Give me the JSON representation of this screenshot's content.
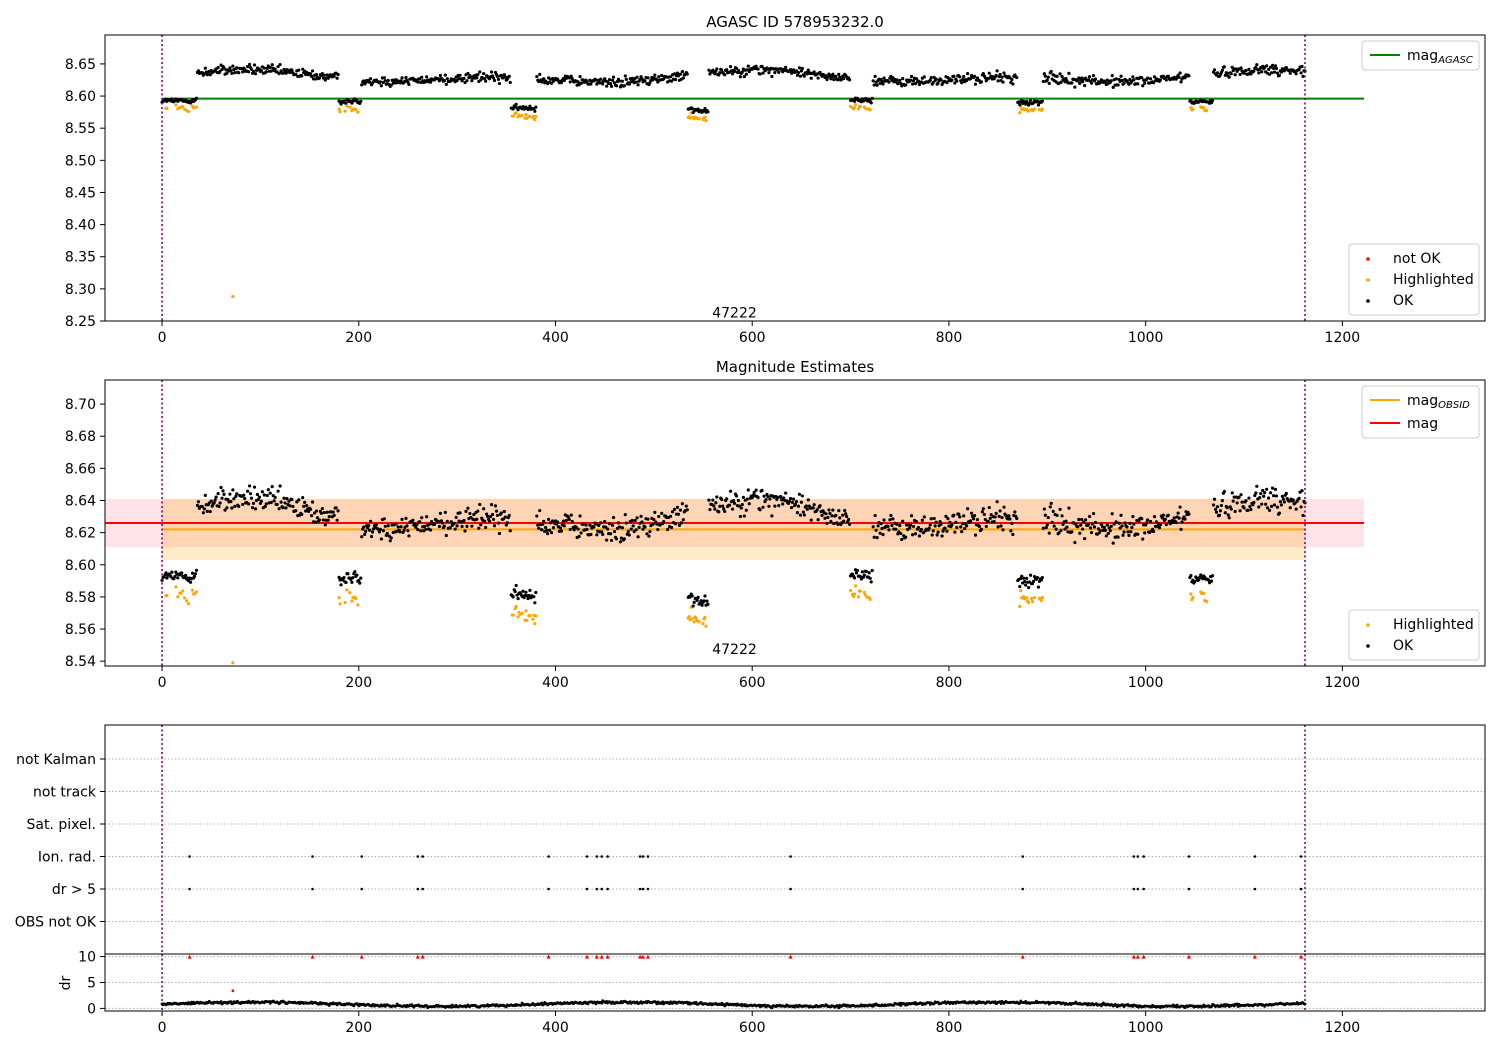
{
  "figure": {
    "background": "#ffffff"
  },
  "chart_data": [
    {
      "id": "agasc",
      "type": "scatter",
      "title": "AGASC ID 578953232.0",
      "xlim": [
        -58,
        1345
      ],
      "ylim": [
        8.25,
        8.695
      ],
      "xticks": [
        0,
        200,
        400,
        600,
        800,
        1000,
        1200
      ],
      "yticks": [
        8.25,
        8.3,
        8.35,
        8.4,
        8.45,
        8.5,
        8.55,
        8.6,
        8.65
      ],
      "ytick_decimals": 2,
      "vlines": [
        0,
        1162
      ],
      "vline_color": "#800080",
      "annotation": {
        "text": "47222",
        "x": 582,
        "y": 8.262
      },
      "hlines": [
        {
          "name": "mag_AGASC",
          "y": 8.596,
          "xrange": [
            0,
            1222
          ],
          "color": "#008000"
        }
      ],
      "series": [
        {
          "name": "not OK",
          "color": "#ff0000",
          "points": []
        },
        {
          "name": "Highlighted",
          "color": "#ffa500",
          "model": "highlighted",
          "outlier": [
            72,
            8.288
          ]
        },
        {
          "name": "OK",
          "color": "#000000",
          "model": "ok"
        }
      ],
      "model_params": {
        "mean": 8.629,
        "amp": 0.012,
        "noise": 0.008,
        "dips": [
          [
            0,
            35,
            8.593
          ],
          [
            180,
            202,
            8.592
          ],
          [
            355,
            380,
            8.581
          ],
          [
            535,
            555,
            8.578
          ],
          [
            700,
            722,
            8.594
          ],
          [
            870,
            895,
            8.59
          ],
          [
            1045,
            1068,
            8.592
          ]
        ],
        "dip_highlight_offset": -0.012
      },
      "legend_top": [
        {
          "label": "mag",
          "sub": "AGASC",
          "color": "#008000",
          "kind": "line"
        }
      ],
      "legend_bottom": [
        {
          "label": "not OK",
          "color": "#ff0000",
          "kind": "dot"
        },
        {
          "label": "Highlighted",
          "color": "#ffa500",
          "kind": "dot"
        },
        {
          "label": "OK",
          "color": "#000000",
          "kind": "dot"
        }
      ]
    },
    {
      "id": "estimates",
      "type": "scatter",
      "title": "Magnitude Estimates",
      "xlim": [
        -58,
        1345
      ],
      "ylim": [
        8.537,
        8.715
      ],
      "xticks": [
        0,
        200,
        400,
        600,
        800,
        1000,
        1200
      ],
      "yticks": [
        8.54,
        8.56,
        8.58,
        8.6,
        8.62,
        8.64,
        8.66,
        8.68,
        8.7
      ],
      "ytick_decimals": 2,
      "vlines": [
        0,
        1162
      ],
      "vline_color": "#800080",
      "annotation": {
        "text": "47222",
        "x": 582,
        "y": 8.547
      },
      "bands": [
        {
          "y0": 8.611,
          "y1": 8.641,
          "xrange": [
            -58,
            1222
          ],
          "color": "#ffc0cb",
          "opacity": 0.45
        },
        {
          "y0": 8.603,
          "y1": 8.641,
          "xrange": [
            0,
            1162
          ],
          "color": "#ffa500",
          "opacity": 0.22
        }
      ],
      "hlines": [
        {
          "name": "mag",
          "y": 8.626,
          "xrange": [
            -58,
            1222
          ],
          "color": "#ff0000"
        },
        {
          "name": "mag_OBSID",
          "y": 8.622,
          "xrange": [
            0,
            1162
          ],
          "color": "#ffa500"
        }
      ],
      "series": [
        {
          "name": "Highlighted",
          "color": "#ffa500",
          "model": "highlighted",
          "outlier": [
            72,
            8.539
          ]
        },
        {
          "name": "OK",
          "color": "#000000",
          "model": "ok"
        }
      ],
      "legend_top": [
        {
          "label": "mag",
          "sub": "OBSID",
          "color": "#ffa500",
          "kind": "line"
        },
        {
          "label": "mag",
          "sub": "",
          "color": "#ff0000",
          "kind": "line"
        }
      ],
      "legend_bottom": [
        {
          "label": "Highlighted",
          "color": "#ffa500",
          "kind": "dot"
        },
        {
          "label": "OK",
          "color": "#000000",
          "kind": "dot"
        }
      ]
    },
    {
      "id": "flags",
      "type": "scatter",
      "xlim": [
        -58,
        1345
      ],
      "categories": [
        "not Kalman",
        "not track",
        "Sat. pixel.",
        "Ion. rad.",
        "dr > 5",
        "OBS not OK"
      ],
      "vlines": [
        0,
        1162
      ],
      "vline_color": "#800080",
      "flag_x": [
        28,
        153,
        203,
        260,
        265,
        393,
        432,
        442,
        447,
        453,
        486,
        489,
        494,
        639,
        875,
        988,
        992,
        998,
        1044,
        1111,
        1158
      ],
      "flagged_categories": [
        "Ion. rad.",
        "dr > 5"
      ]
    },
    {
      "id": "dr",
      "type": "scatter",
      "ylabel": "dr",
      "xlim": [
        -58,
        1345
      ],
      "ylim": [
        -0.5,
        10.5
      ],
      "xticks": [
        0,
        200,
        400,
        600,
        800,
        1000,
        1200
      ],
      "yticks": [
        0,
        5,
        10
      ],
      "vlines": [
        0,
        1162
      ],
      "vline_color": "#800080",
      "dr_mean": 0.8,
      "dr_noise": 0.25,
      "dr_outlier": [
        72,
        3.4
      ],
      "dr_clip": 10,
      "dr_clip_color": "#ff0000",
      "dr_point_color": "#000000"
    }
  ]
}
